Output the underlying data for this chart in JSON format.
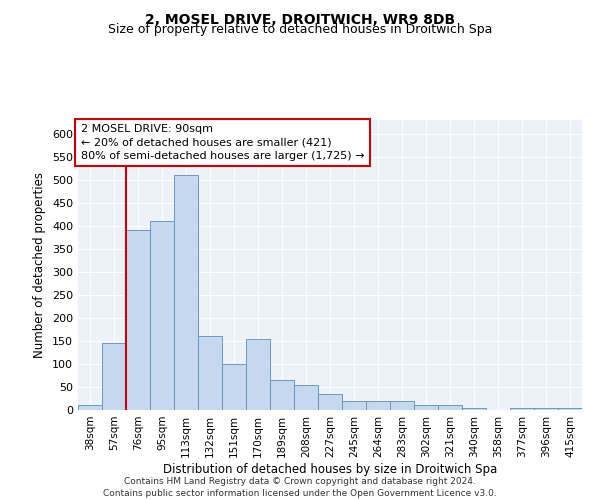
{
  "title": "2, MOSEL DRIVE, DROITWICH, WR9 8DB",
  "subtitle": "Size of property relative to detached houses in Droitwich Spa",
  "xlabel": "Distribution of detached houses by size in Droitwich Spa",
  "ylabel": "Number of detached properties",
  "footer_line1": "Contains HM Land Registry data © Crown copyright and database right 2024.",
  "footer_line2": "Contains public sector information licensed under the Open Government Licence v3.0.",
  "categories": [
    "38sqm",
    "57sqm",
    "76sqm",
    "95sqm",
    "113sqm",
    "132sqm",
    "151sqm",
    "170sqm",
    "189sqm",
    "208sqm",
    "227sqm",
    "245sqm",
    "264sqm",
    "283sqm",
    "302sqm",
    "321sqm",
    "340sqm",
    "358sqm",
    "377sqm",
    "396sqm",
    "415sqm"
  ],
  "values": [
    10,
    145,
    390,
    410,
    510,
    160,
    100,
    155,
    65,
    55,
    35,
    20,
    20,
    20,
    10,
    10,
    5,
    0,
    5,
    5,
    5
  ],
  "bar_color": "#c5d8ed",
  "bar_edge_color": "#5a8fc0",
  "annotation_text": "2 MOSEL DRIVE: 90sqm\n← 20% of detached houses are smaller (421)\n80% of semi-detached houses are larger (1,725) →",
  "annotation_box_color": "#ffffff",
  "annotation_box_edge_color": "#cc0000",
  "vline_x": 1.5,
  "vline_color": "#cc0000",
  "ylim": [
    0,
    630
  ],
  "yticks": [
    0,
    50,
    100,
    150,
    200,
    250,
    300,
    350,
    400,
    450,
    500,
    550,
    600
  ],
  "background_color": "#edf2f9",
  "grid_color": "#ffffff",
  "title_fontsize": 10,
  "subtitle_fontsize": 9,
  "xlabel_fontsize": 8.5,
  "ylabel_fontsize": 8.5,
  "annot_fontsize": 8,
  "tick_fontsize": 7.5,
  "ytick_fontsize": 8
}
